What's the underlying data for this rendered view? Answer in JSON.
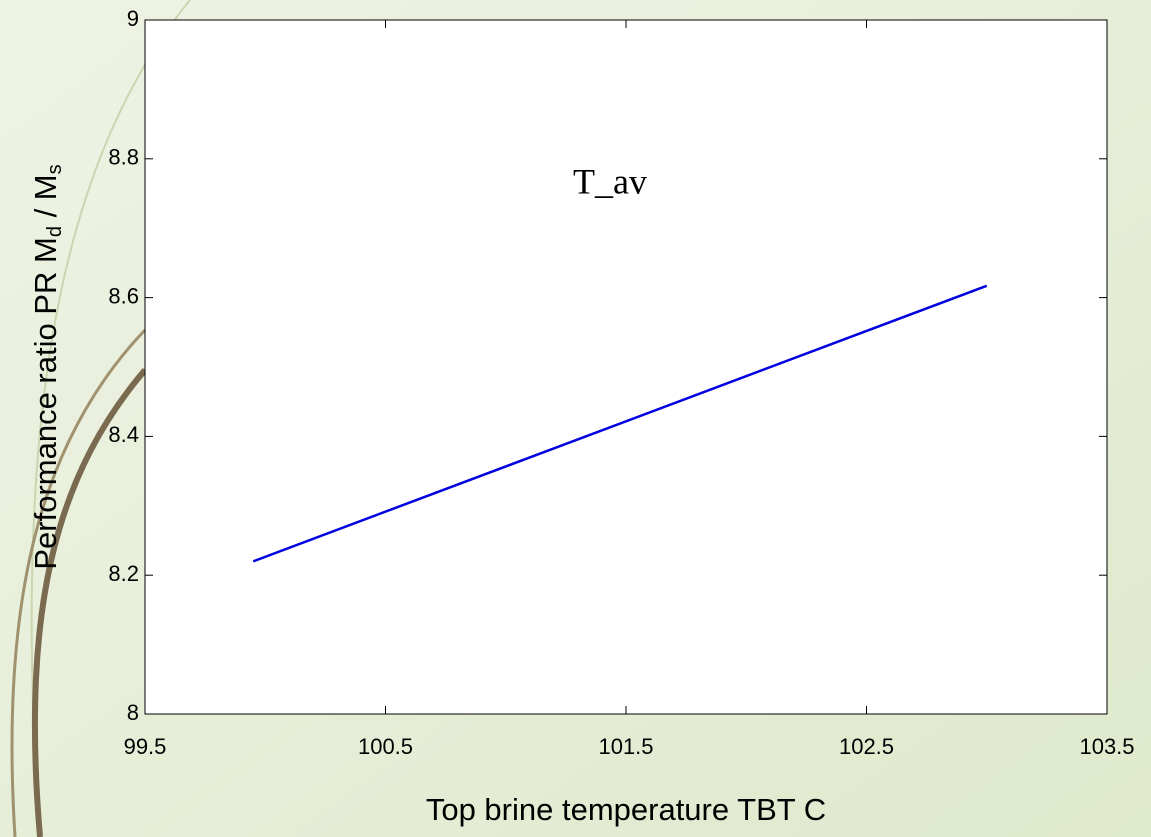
{
  "chart_data": {
    "type": "line",
    "xlabel": "Top brine temperature TBT C",
    "ylabel": [
      "Performance ratio PR  M",
      "d",
      " / M",
      "s"
    ],
    "annotation": "T_av",
    "x": [
      99.95,
      103
    ],
    "series": [
      {
        "color": "#0000e0",
        "values": [
          8.22,
          8.617
        ]
      }
    ],
    "xlim": [
      99.5,
      103.5
    ],
    "xticks": [
      99.5,
      100.5,
      101.5,
      102.5,
      103.5
    ],
    "ylim": [
      8,
      9
    ],
    "yticks": [
      8,
      8.2,
      8.4,
      8.6,
      8.8,
      9
    ],
    "annotation_color": "#ff0000"
  }
}
